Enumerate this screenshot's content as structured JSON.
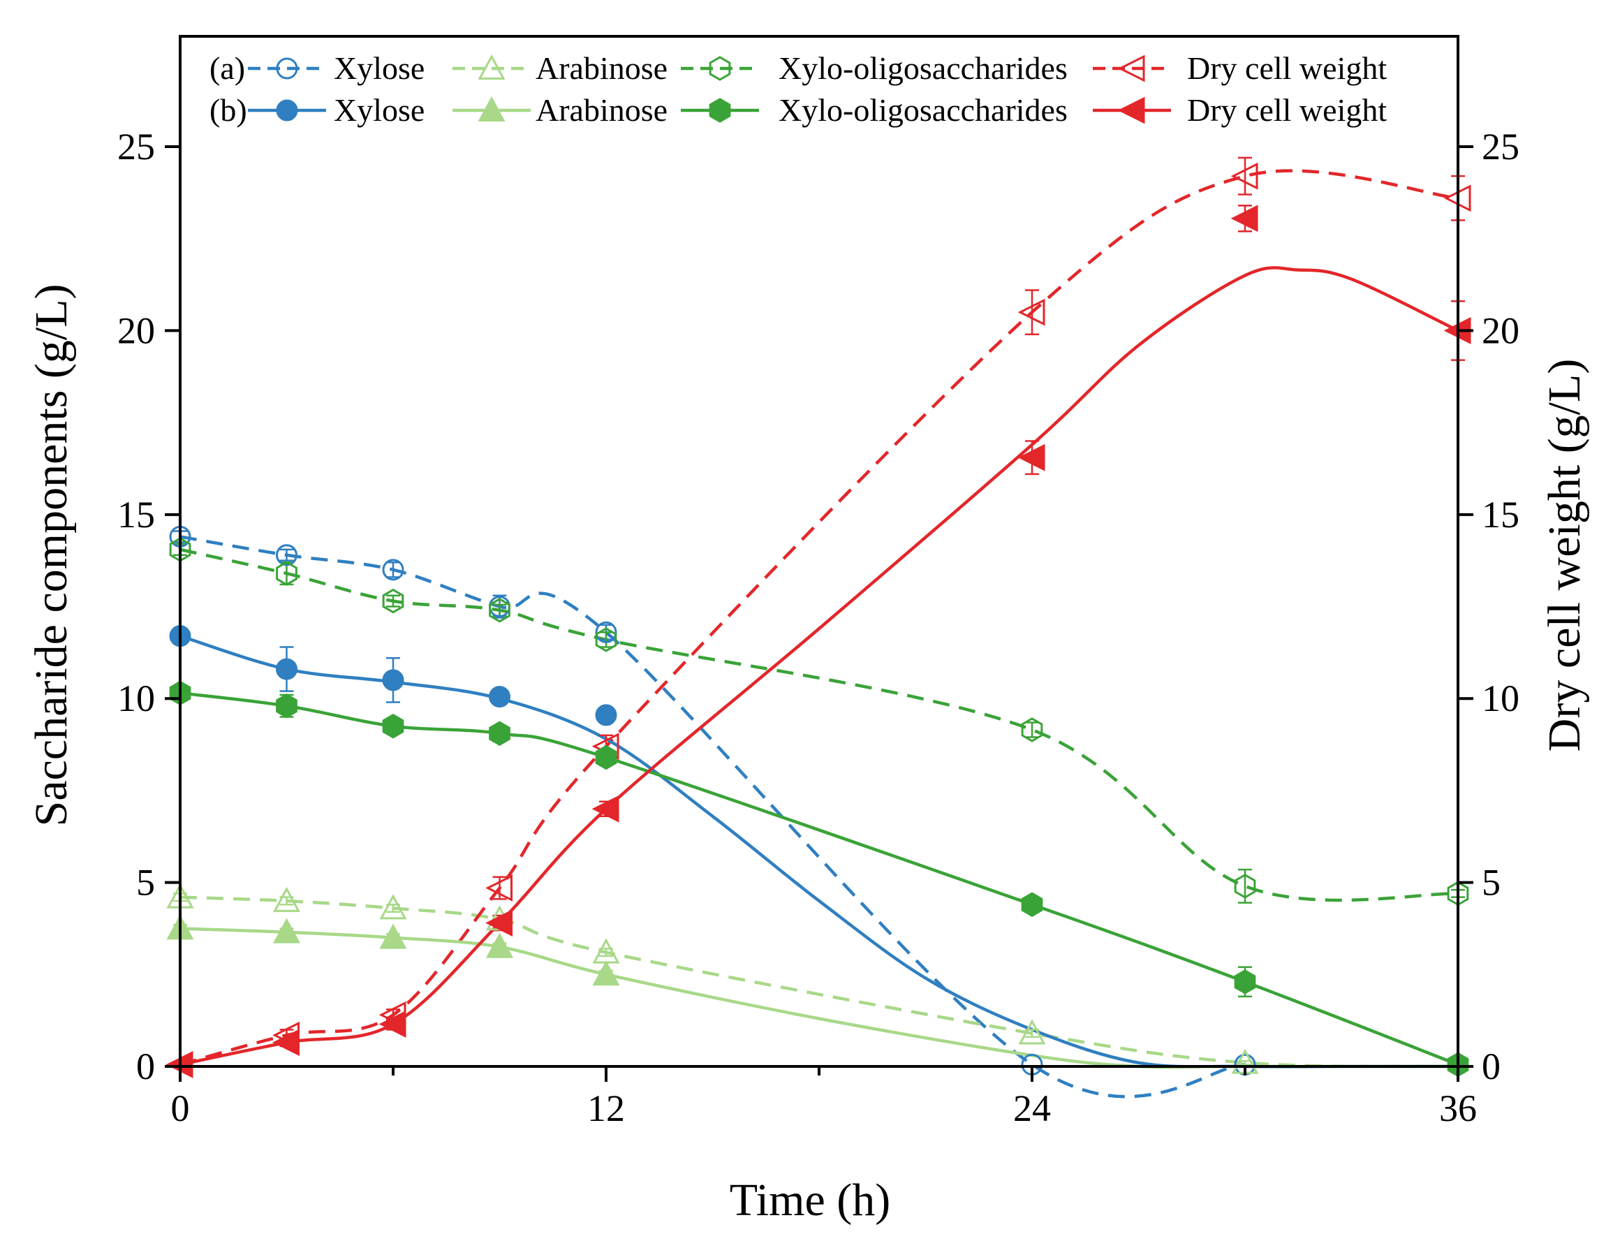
{
  "chart_data": {
    "type": "line",
    "xlabel": "Time (h)",
    "ylabel_left": "Saccharide components (g/L)",
    "ylabel_right": "Dry cell weight (g/L)",
    "xlim": [
      0,
      36
    ],
    "ylim_left": [
      0,
      28
    ],
    "ylim_right": [
      0,
      28
    ],
    "x_ticks": [
      0,
      12,
      24,
      36
    ],
    "x_minor_ticks": [
      6,
      18,
      30
    ],
    "y_ticks": [
      0,
      5,
      10,
      15,
      20,
      25
    ],
    "legend": {
      "position": "top",
      "rows": [
        {
          "tag": "(a)",
          "style": "dashed",
          "filled": false,
          "entries": [
            "Xylose",
            "Arabinose",
            "Xylo-oligosaccharides",
            "Dry cell weight"
          ]
        },
        {
          "tag": "(b)",
          "style": "solid",
          "filled": true,
          "entries": [
            "Xylose",
            "Arabinose",
            "Xylo-oligosaccharides",
            "Dry cell weight"
          ]
        }
      ]
    },
    "series": [
      {
        "id": "a-xylose",
        "name": "Xylose",
        "group": "(a)",
        "axis": "left",
        "color": "#2f7fc1",
        "style": "dashed",
        "marker": "circle-open",
        "x": [
          0,
          3,
          6,
          9,
          12,
          24,
          30
        ],
        "y": [
          14.4,
          13.9,
          13.5,
          12.5,
          11.8,
          0.05,
          0.05
        ],
        "err": [
          0.15,
          0.15,
          0.2,
          0.3,
          0.2,
          0,
          0
        ],
        "curve_x": [
          0,
          3,
          6,
          9,
          12,
          24,
          30
        ],
        "curve_y": [
          14.4,
          13.9,
          13.5,
          12.5,
          11.8,
          0.05,
          0.05
        ]
      },
      {
        "id": "a-arabinose",
        "name": "Arabinose",
        "group": "(a)",
        "axis": "left",
        "color": "#a8d888",
        "style": "dashed",
        "marker": "triangle-open",
        "x": [
          0,
          3,
          6,
          9,
          12,
          24,
          30
        ],
        "y": [
          4.6,
          4.5,
          4.3,
          4.0,
          3.1,
          0.9,
          0.1
        ],
        "err": [
          0.1,
          0.1,
          0.1,
          0.1,
          0.1,
          0.1,
          0.05
        ],
        "curve_x": [
          0,
          3,
          6,
          9,
          12,
          24,
          30,
          36
        ],
        "curve_y": [
          4.6,
          4.5,
          4.3,
          4.0,
          3.1,
          0.9,
          0.1,
          0.0
        ]
      },
      {
        "id": "a-xos",
        "name": "Xylo-oligosaccharides",
        "group": "(a)",
        "axis": "left",
        "color": "#3aa337",
        "style": "dashed",
        "marker": "hexagon-open",
        "x": [
          0,
          3,
          6,
          9,
          12,
          24,
          30,
          36
        ],
        "y": [
          14.05,
          13.4,
          12.65,
          12.4,
          11.6,
          9.15,
          4.9,
          4.7
        ],
        "err": [
          0.15,
          0.3,
          0.15,
          0.15,
          0.2,
          0.2,
          0.45,
          0.1
        ],
        "curve_x": [
          0,
          3,
          6,
          9,
          12,
          24,
          30,
          36
        ],
        "curve_y": [
          14.05,
          13.4,
          12.65,
          12.4,
          11.6,
          9.15,
          4.9,
          4.7
        ]
      },
      {
        "id": "a-dcw",
        "name": "Dry cell weight",
        "group": "(a)",
        "axis": "right",
        "color": "#e3262a",
        "style": "dashed",
        "marker": "triangle-left-open",
        "x": [
          0,
          3,
          6,
          9,
          12,
          24,
          30,
          36
        ],
        "y": [
          0.05,
          0.85,
          1.4,
          4.85,
          8.7,
          20.5,
          24.2,
          23.6
        ],
        "err": [
          0,
          0.15,
          0.15,
          0.3,
          0.3,
          0.6,
          0.5,
          0.6
        ],
        "curve_x": [
          0,
          3,
          6,
          9,
          12,
          24,
          30,
          36
        ],
        "curve_y": [
          0.05,
          0.85,
          1.4,
          4.85,
          8.7,
          20.5,
          24.2,
          23.6
        ]
      },
      {
        "id": "b-xylose",
        "name": "Xylose",
        "group": "(b)",
        "axis": "left",
        "color": "#2f7fc1",
        "style": "solid",
        "marker": "circle-filled",
        "x": [
          0,
          3,
          6,
          9,
          12
        ],
        "y": [
          11.7,
          10.8,
          10.5,
          10.05,
          9.55
        ],
        "err": [
          0.1,
          0.6,
          0.6,
          0.15,
          0
        ],
        "curve_x": [
          0,
          3,
          6,
          9,
          12,
          15,
          18,
          21,
          24,
          27,
          30,
          33,
          36
        ],
        "curve_y": [
          11.7,
          10.8,
          10.45,
          10.0,
          8.9,
          6.8,
          4.5,
          2.4,
          1.0,
          0.1,
          0.0,
          0.0,
          0.0
        ]
      },
      {
        "id": "b-arabinose",
        "name": "Arabinose",
        "group": "(b)",
        "axis": "left",
        "color": "#a8d888",
        "style": "solid",
        "marker": "triangle-filled",
        "x": [
          0,
          3,
          6,
          9,
          12
        ],
        "y": [
          3.75,
          3.65,
          3.5,
          3.25,
          2.5
        ],
        "err": [
          0.1,
          0.1,
          0.1,
          0.1,
          0.1
        ],
        "curve_x": [
          0,
          3,
          6,
          9,
          12,
          18,
          24,
          27,
          30,
          36
        ],
        "curve_y": [
          3.75,
          3.65,
          3.5,
          3.25,
          2.5,
          1.3,
          0.3,
          0.0,
          0.0,
          0.0
        ]
      },
      {
        "id": "b-xos",
        "name": "Xylo-oligosaccharides",
        "group": "(b)",
        "axis": "left",
        "color": "#3aa337",
        "style": "solid",
        "marker": "hexagon-filled",
        "x": [
          0,
          3,
          6,
          9,
          12,
          24,
          30,
          36
        ],
        "y": [
          10.15,
          9.8,
          9.25,
          9.05,
          8.4,
          4.4,
          2.3,
          0.05
        ],
        "err": [
          0.1,
          0.3,
          0.15,
          0.15,
          0.15,
          0.15,
          0.4,
          0
        ],
        "curve_x": [
          0,
          3,
          6,
          9,
          12,
          24,
          30,
          36
        ],
        "curve_y": [
          10.15,
          9.8,
          9.25,
          9.05,
          8.4,
          4.4,
          2.3,
          0.05
        ]
      },
      {
        "id": "b-dcw",
        "name": "Dry cell weight",
        "group": "(b)",
        "axis": "right",
        "color": "#e3262a",
        "style": "solid",
        "marker": "triangle-left-filled",
        "x": [
          0,
          3,
          6,
          9,
          12,
          24,
          30,
          36
        ],
        "y": [
          0.05,
          0.65,
          1.15,
          3.9,
          7.0,
          16.55,
          23.05,
          20.0
        ],
        "err": [
          0,
          0.1,
          0.15,
          0.2,
          0.2,
          0.45,
          0.35,
          0.8
        ],
        "curve_x": [
          0,
          3,
          6,
          9,
          12,
          18,
          24,
          27,
          30,
          31.5,
          33,
          36
        ],
        "curve_y": [
          0.05,
          0.65,
          1.15,
          3.9,
          7.0,
          11.9,
          16.9,
          19.6,
          21.5,
          21.65,
          21.4,
          20.0
        ]
      }
    ]
  }
}
